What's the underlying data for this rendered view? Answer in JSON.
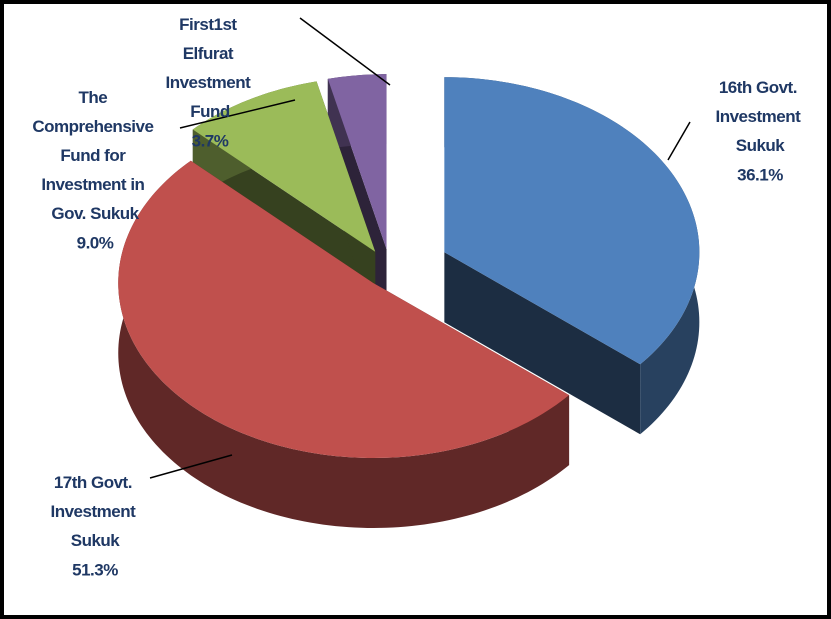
{
  "chart_data": {
    "type": "pie",
    "categories": [
      "16th Govt. Investment Sukuk",
      "17th Govt. Investment Sukuk",
      "The Comprehensive Fund for Investment in Gov. Sukuk",
      "First1st Elfurat Investment Fund"
    ],
    "values": [
      36.1,
      51.3,
      9.0,
      3.7
    ],
    "value_labels": [
      "36.1%",
      "51.3%",
      "9.0%",
      "3.7%"
    ],
    "colors": [
      "#4f81bd",
      "#c0504d",
      "#9bbb59",
      "#8064a2"
    ]
  }
}
